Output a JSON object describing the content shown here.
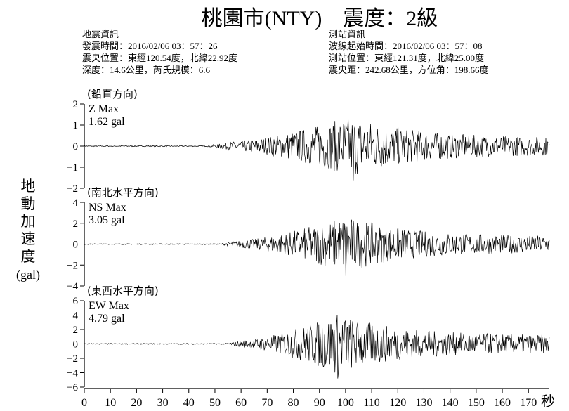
{
  "title": "桃園市(NTY)　震度：2級",
  "info_left": {
    "heading": "地震資訊",
    "lines": [
      "發震時間：2016/02/06  03：57：26",
      "震央位置：東經120.54度，北緯22.92度",
      "深度：14.6公里，芮氏規模：6.6"
    ]
  },
  "info_right": {
    "heading": "測站資訊",
    "lines": [
      "波線起始時間：2016/02/06  03：57：08",
      "測站位置：東經121.31度，北緯25.00度",
      "震央距：242.68公里，方位角：198.66度"
    ]
  },
  "ylabel_lines": [
    "地",
    "動",
    "加",
    "速",
    "度"
  ],
  "ylabel_unit": "(gal)",
  "x_unit": "秒",
  "colors": {
    "trace": "#000000",
    "axis": "#000000",
    "background": "#ffffff"
  },
  "chart_data": [
    {
      "type": "line",
      "component_label": "(鉛直方向)",
      "max_title": "Z Max",
      "max_value": "1.62 gal",
      "peak_abs": 1.62,
      "ylim": [
        -2,
        2
      ],
      "yticks": [
        2,
        1,
        0,
        -1,
        -2
      ],
      "ytick_labels": [
        "2",
        "1",
        "0",
        "−1",
        "−2"
      ],
      "xlim": [
        0,
        178
      ],
      "signal_onset_s": 55,
      "peak_time_s": 103
    },
    {
      "type": "line",
      "component_label": "(南北水平方向)",
      "max_title": "NS Max",
      "max_value": "3.05 gal",
      "peak_abs": 3.05,
      "ylim": [
        -4,
        4
      ],
      "yticks": [
        4,
        2,
        0,
        -2,
        -4
      ],
      "ytick_labels": [
        "4",
        "2",
        "0",
        "−2",
        "−4"
      ],
      "xlim": [
        0,
        178
      ],
      "signal_onset_s": 60,
      "peak_time_s": 100
    },
    {
      "type": "line",
      "component_label": "(東西水平方向)",
      "max_title": "EW Max",
      "max_value": "4.79 gal",
      "peak_abs": 4.79,
      "ylim": [
        -6,
        6
      ],
      "yticks": [
        6,
        4,
        2,
        0,
        -2,
        -4,
        -6
      ],
      "ytick_labels": [
        "6",
        "4",
        "2",
        "0",
        "−2",
        "−4",
        "−6"
      ],
      "xlim": [
        0,
        178
      ],
      "signal_onset_s": 62,
      "peak_time_s": 97
    }
  ],
  "xticks": [
    0,
    10,
    20,
    30,
    40,
    50,
    60,
    70,
    80,
    90,
    100,
    110,
    120,
    130,
    140,
    150,
    160,
    170
  ],
  "xtick_labels": [
    "0",
    "10",
    "20",
    "30",
    "40",
    "50",
    "60",
    "70",
    "80",
    "90",
    "100",
    "110",
    "120",
    "130",
    "140",
    "150",
    "160",
    "170"
  ]
}
